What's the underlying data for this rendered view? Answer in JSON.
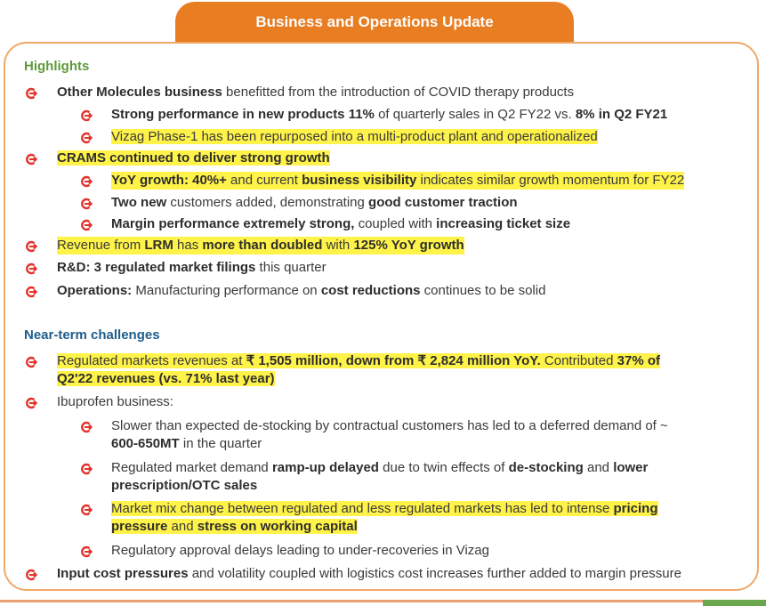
{
  "title": "Business and Operations Update",
  "colors": {
    "orange": "#e87d22",
    "border": "#f0a868",
    "green": "#5f9a3a",
    "blue": "#1f5d8a",
    "highlight": "#fff34a",
    "bullet": "#e4322b"
  },
  "highlights": {
    "heading": "Highlights",
    "l1": {
      "b": "Other Molecules business",
      "t": " benefitted from the introduction of COVID therapy products"
    },
    "l1a": {
      "b1": "Strong performance in new products 11%",
      "t1": " of quarterly sales in Q2 FY22 vs. ",
      "b2": "8% in Q2 FY21"
    },
    "l1b": {
      "t": "Vizag Phase-1 has been repurposed into a multi-product plant and operationalized"
    },
    "l2": {
      "b": "CRAMS continued to deliver strong growth"
    },
    "l2a": {
      "b1": "YoY growth: 40%+",
      "t1": " and current ",
      "b2": "business visibility",
      "t2": " indicates similar growth momentum for FY22"
    },
    "l2b": {
      "b1": "Two new",
      "t1": " customers added, demonstrating ",
      "b2": "good customer traction"
    },
    "l2c": {
      "b1": "Margin performance extremely strong,",
      "t1": " coupled with ",
      "b2": "increasing ticket size"
    },
    "l3": {
      "t1": "Revenue from ",
      "b1": "LRM",
      "t2": " has ",
      "b2": "more than doubled",
      "t3": " with ",
      "b3": "125% YoY growth"
    },
    "l4": {
      "b": "R&D: 3 regulated market filings",
      "t": " this quarter"
    },
    "l5": {
      "b1": "Operations:",
      "t1": " Manufacturing performance on ",
      "b2": "cost reductions",
      "t2": " continues to be solid"
    }
  },
  "challenges": {
    "heading": "Near-term challenges",
    "c1": {
      "t1": "Regulated markets revenues at ",
      "b1": "₹ 1,505 million, down from ₹ 2,824 million YoY.",
      "t2": " Contributed ",
      "b2": "37% of",
      "b3": "Q2'22 revenues (vs. 71% last year)"
    },
    "c2": {
      "t": "Ibuprofen business:"
    },
    "c2a": {
      "t1": "Slower than expected de-stocking by contractual customers has led to a deferred demand of ~",
      "b1": "600-650MT",
      "t2": " in the quarter"
    },
    "c2b": {
      "t1": "Regulated market demand ",
      "b1": "ramp-up delayed",
      "t2": " due to twin effects of ",
      "b2": "de-stocking",
      "t3": " and ",
      "b3": "lower",
      "b4": "prescription/OTC sales"
    },
    "c2c": {
      "t1": "Market mix change between regulated and less regulated markets has led to intense ",
      "b1": "pricing",
      "b2": "pressure",
      "t2": " and ",
      "b3": "stress on working capital"
    },
    "c2d": {
      "t": "Regulatory approval delays leading to under-recoveries in Vizag"
    },
    "c3": {
      "b1": "Input cost pressures",
      "t1": " and volatility coupled with logistics cost increases further added to margin pressure"
    }
  }
}
